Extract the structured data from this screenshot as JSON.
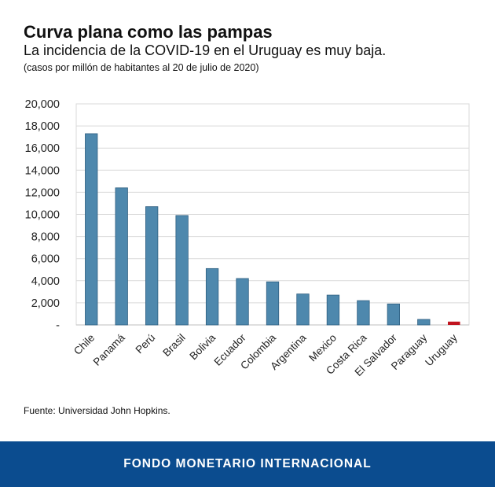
{
  "header": {
    "title": "Curva plana como las pampas",
    "subtitle": "La incidencia de la COVID-19 en el Uruguay es muy baja.",
    "note": "(casos por millón de habitantes al 20 de julio de 2020)"
  },
  "source": "Fuente: Universidad John Hopkins.",
  "footer": {
    "org": "FONDO MONETARIO INTERNACIONAL"
  },
  "colors": {
    "bar": "#4e88ad",
    "bar_highlight": "#c0141f",
    "footer": "#0b4c8f",
    "grid": "#d9d9d9"
  },
  "chart_data": {
    "type": "bar",
    "categories": [
      "Chile",
      "Panamá",
      "Perú",
      "Brasil",
      "Bolivia",
      "Ecuador",
      "Colombia",
      "Argentina",
      "Mexico",
      "Costa Rica",
      "El Salvador",
      "Paraguay",
      "Uruguay"
    ],
    "values": [
      17300,
      12400,
      10700,
      9900,
      5100,
      4200,
      3900,
      2800,
      2700,
      2200,
      1900,
      500,
      300
    ],
    "highlight": "Uruguay",
    "ylim": [
      0,
      20000
    ],
    "yticks": [
      0,
      2000,
      4000,
      6000,
      8000,
      10000,
      12000,
      14000,
      16000,
      18000,
      20000
    ],
    "ytick_labels": [
      "-",
      "2,000",
      "4,000",
      "6,000",
      "8,000",
      "10,000",
      "12,000",
      "14,000",
      "16,000",
      "18,000",
      "20,000"
    ],
    "grid": true,
    "xlabel": "",
    "ylabel": ""
  }
}
